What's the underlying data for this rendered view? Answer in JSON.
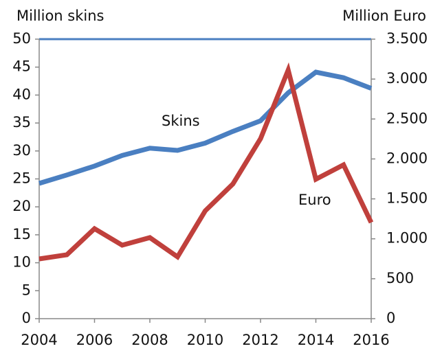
{
  "chart_data": {
    "type": "line",
    "y_label": "Million skins",
    "y2_label": "Million  Euro",
    "annotations": [
      "Skins",
      "Euro"
    ],
    "x": [
      2004,
      2005,
      2006,
      2007,
      2008,
      2009,
      2010,
      2011,
      2012,
      2013,
      2014,
      2015,
      2016
    ],
    "xlim": [
      2004,
      2016
    ],
    "xticks": [
      2004,
      2006,
      2008,
      2010,
      2012,
      2014,
      2016
    ],
    "ylim": [
      0,
      50
    ],
    "yticks": [
      0,
      5,
      10,
      15,
      20,
      25,
      30,
      35,
      40,
      45,
      50
    ],
    "y2lim": [
      0,
      3500
    ],
    "y2ticks": [
      0,
      500,
      {
        "value": 1000,
        "label": "1.000"
      },
      {
        "value": 1500,
        "label": "1.500"
      },
      {
        "value": 2000,
        "label": "2.000"
      },
      {
        "value": 2500,
        "label": "2.500"
      },
      {
        "value": 3000,
        "label": "3.000"
      },
      {
        "value": 3500,
        "label": "3.500"
      }
    ],
    "series": [
      {
        "name": "Skins",
        "color": "#4a7fc1",
        "values": [
          24.2,
          25.7,
          27.3,
          29.2,
          30.5,
          30.1,
          31.4,
          33.5,
          35.4,
          40.4,
          44.1,
          43.1,
          41.2
        ]
      },
      {
        "name": "Euro",
        "color": "#c0403c",
        "axis": "y2",
        "values": [
          748,
          800,
          1127,
          920,
          1015,
          774,
          1350,
          1686,
          2253,
          3113,
          1746,
          1926,
          1204
        ]
      }
    ]
  }
}
